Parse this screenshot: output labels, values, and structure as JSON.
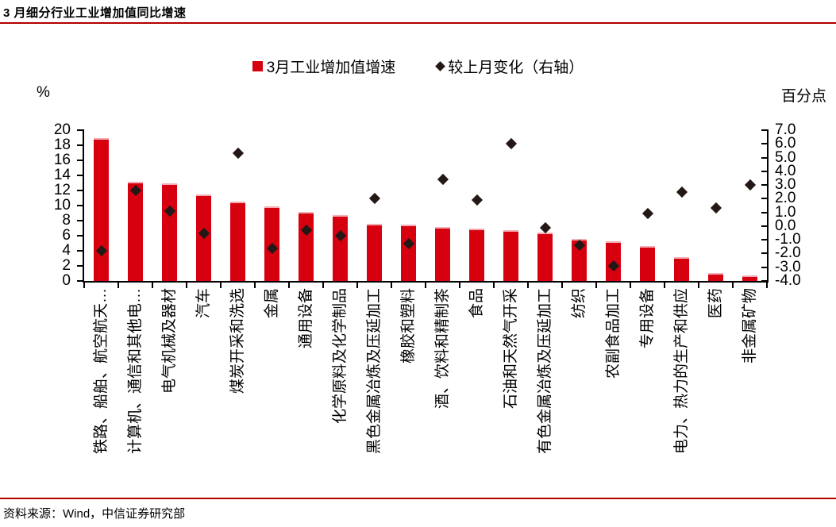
{
  "title": "3 月细分行业工业增加值同比增速",
  "source": "资料来源：Wind，中信证券研究部",
  "colors": {
    "bar_red": "#d7000f",
    "diamond_dark": "#231815",
    "rule_red": "#b20000",
    "axis_black": "#000000"
  },
  "chart_data": {
    "type": "bar",
    "title": "3 月细分行业工业增加值同比增速",
    "legend_position": "top-center",
    "grid": false,
    "categories": [
      "铁路、船舶、航空航天…",
      "计算机、通信和其他电…",
      "电气机械及器材",
      "汽车",
      "煤炭开采和洗选",
      "金属",
      "通用设备",
      "化学原料及化学制品",
      "黑色金属冶炼及压延加工",
      "橡胶和塑料",
      "酒、饮料和精制茶",
      "食品",
      "石油和天然气开采",
      "有色金属冶炼及压延加工",
      "纺织",
      "农副食品加工",
      "专用设备",
      "电力、热力的生产和供应",
      "医药",
      "非金属矿物"
    ],
    "series": [
      {
        "name": "3月工业增加值增速",
        "type": "bar",
        "axis": "left",
        "color": "#d7000f",
        "values": [
          19.0,
          13.2,
          13.0,
          11.5,
          10.5,
          9.9,
          9.2,
          8.7,
          7.6,
          7.5,
          7.2,
          7.0,
          6.7,
          6.4,
          5.6,
          5.3,
          4.6,
          3.2,
          1.1,
          0.7
        ]
      },
      {
        "name": "较上月变化（右轴）",
        "type": "scatter",
        "marker": "diamond",
        "axis": "right",
        "color": "#231815",
        "values": [
          -1.8,
          2.6,
          1.1,
          -0.5,
          5.3,
          -1.6,
          -0.3,
          -0.7,
          2.0,
          -1.3,
          3.4,
          1.9,
          6.0,
          -0.1,
          -1.4,
          -2.9,
          0.9,
          2.5,
          1.3,
          3.0
        ]
      }
    ],
    "left_axis": {
      "label": "%",
      "min": 0,
      "max": 20,
      "step": 2
    },
    "right_axis": {
      "label": "百分点",
      "min": -4,
      "max": 7,
      "step": 1
    }
  }
}
